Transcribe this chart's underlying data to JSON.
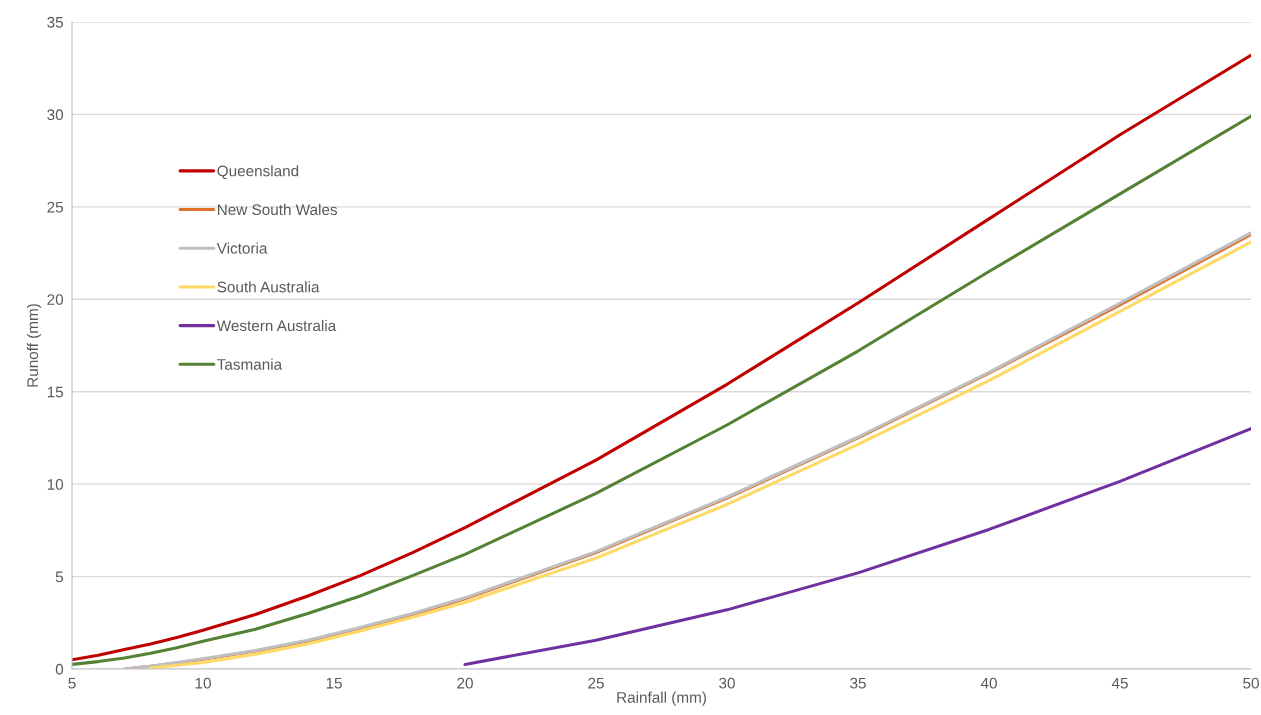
{
  "chart_data": {
    "type": "line",
    "xlabel": "Rainfall (mm)",
    "ylabel": "Runoff (mm)",
    "xlim": [
      5,
      50
    ],
    "xticks": [
      5,
      10,
      15,
      20,
      25,
      30,
      35,
      40,
      45,
      50
    ],
    "ylim": [
      0,
      35
    ],
    "yticks": [
      0,
      5,
      10,
      15,
      20,
      25,
      30,
      35
    ],
    "grid": "y",
    "legend": "top left",
    "marker": "none",
    "line_style": "solid",
    "series": [
      {
        "name": "Queensland",
        "color": "#c00000",
        "x": [
          5,
          6,
          7,
          8,
          9,
          10,
          12,
          14,
          16,
          18,
          20,
          25,
          30,
          35,
          40,
          45,
          50
        ],
        "values": [
          0.5,
          0.75,
          1.05,
          1.35,
          1.7,
          2.1,
          2.95,
          3.95,
          5.05,
          6.3,
          7.65,
          11.3,
          15.4,
          19.8,
          24.35,
          28.9,
          33.2
        ]
      },
      {
        "name": "New South Wales",
        "color": "#e07028",
        "x": [
          7,
          8,
          9,
          10,
          12,
          14,
          16,
          18,
          20,
          25,
          30,
          35,
          40,
          45,
          50
        ],
        "values": [
          0,
          0.15,
          0.33,
          0.53,
          0.98,
          1.52,
          2.2,
          2.95,
          3.8,
          6.3,
          9.25,
          12.5,
          16.0,
          19.7,
          23.5
        ]
      },
      {
        "name": "Victoria",
        "color": "#bfbfbf",
        "x": [
          7,
          8,
          9,
          10,
          12,
          14,
          16,
          18,
          20,
          25,
          30,
          35,
          40,
          45,
          50
        ],
        "values": [
          0,
          0.15,
          0.35,
          0.55,
          1.0,
          1.55,
          2.25,
          3.0,
          3.85,
          6.35,
          9.3,
          12.55,
          16.05,
          19.8,
          23.6
        ]
      },
      {
        "name": "South Australia",
        "color": "#ffd966",
        "x": [
          8,
          9,
          10,
          12,
          14,
          16,
          18,
          20,
          25,
          30,
          35,
          40,
          45,
          50
        ],
        "values": [
          0.05,
          0.2,
          0.35,
          0.8,
          1.35,
          2.05,
          2.8,
          3.6,
          6.0,
          8.9,
          12.15,
          15.6,
          19.35,
          23.1
        ]
      },
      {
        "name": "Western Australia",
        "color": "#7030a0",
        "x": [
          20,
          25,
          30,
          35,
          40,
          45,
          50
        ],
        "values": [
          0.25,
          1.55,
          3.2,
          5.2,
          7.55,
          10.15,
          13.0
        ]
      },
      {
        "name": "Tasmania",
        "color": "#548235",
        "x": [
          5,
          6,
          7,
          8,
          9,
          10,
          12,
          14,
          16,
          18,
          20,
          25,
          30,
          35,
          40,
          45,
          50
        ],
        "values": [
          0.25,
          0.4,
          0.6,
          0.85,
          1.15,
          1.5,
          2.15,
          3.0,
          3.95,
          5.05,
          6.2,
          9.5,
          13.2,
          17.2,
          21.5,
          25.7,
          29.9
        ]
      }
    ]
  }
}
